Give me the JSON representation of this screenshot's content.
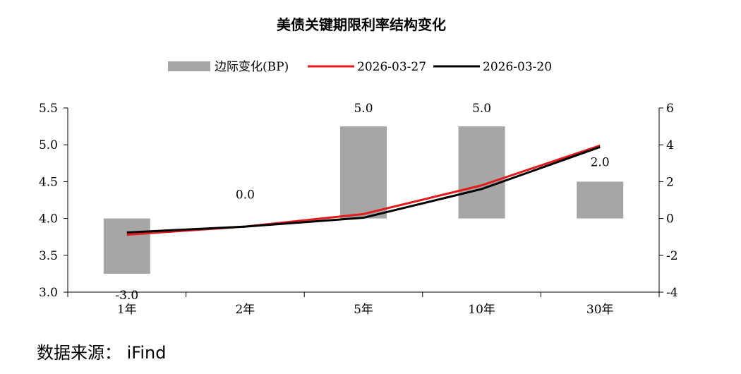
{
  "source": "数据来源： iFind",
  "chart_data": {
    "type": "bar+line",
    "title": "美债关键期限利率结构变化",
    "categories": [
      "1年",
      "2年",
      "5年",
      "10年",
      "30年"
    ],
    "bar_series": {
      "name": "边际变化(BP)",
      "axis": "right",
      "values": [
        -3.0,
        0.0,
        5.0,
        5.0,
        2.0
      ],
      "labels": [
        "-3.0",
        "0.0",
        "5.0",
        "5.0",
        "2.0"
      ],
      "color": "#a6a6a6"
    },
    "line_series": [
      {
        "name": "2026-03-27",
        "axis": "left",
        "values": [
          3.78,
          3.89,
          4.06,
          4.45,
          4.99
        ],
        "color": "#e31a1c"
      },
      {
        "name": "2026-03-20",
        "axis": "left",
        "values": [
          3.81,
          3.89,
          4.01,
          4.4,
          4.97
        ],
        "color": "#000000"
      }
    ],
    "left_axis": {
      "ylim": [
        3.0,
        5.5
      ],
      "ticks": [
        "3.0",
        "3.5",
        "4.0",
        "4.5",
        "5.0",
        "5.5"
      ]
    },
    "right_axis": {
      "ylim": [
        -4,
        6
      ],
      "ticks": [
        "-4",
        "-2",
        "0",
        "2",
        "4",
        "6"
      ]
    },
    "legend": {
      "position": "top"
    },
    "grid": false
  }
}
